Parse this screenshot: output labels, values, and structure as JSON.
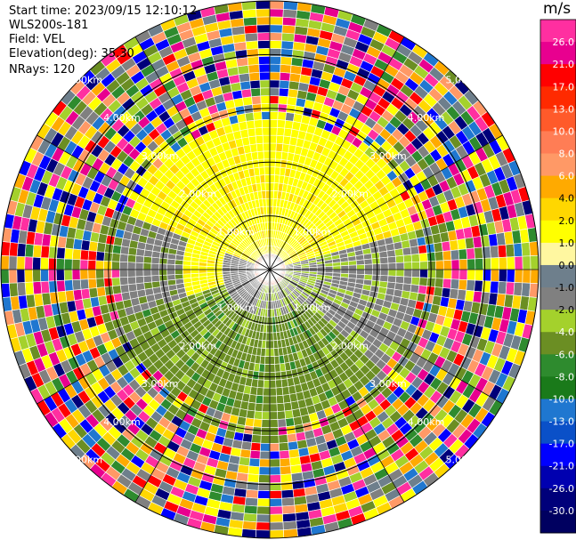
{
  "header": {
    "start_time": "Start time: 2023/09/15 12:10:12",
    "instrument": "WLS200s-181",
    "field": "Field: VEL",
    "elevation": "Elevation(deg): 35.30",
    "nrays": "NRays: 120"
  },
  "chart_data": {
    "type": "heatmap",
    "projection": "polar PPI",
    "field": "VEL",
    "units": "m/s",
    "range_rings_km": [
      1.0,
      2.0,
      3.0,
      4.0,
      5.0
    ],
    "ring_labels": [
      "1.00km",
      "2.00km",
      "3.00km",
      "4.00km",
      "5.00km"
    ],
    "max_range_km": 5.0,
    "nrays": 120,
    "colorbar": {
      "label": "m/s",
      "ticks": [
        "26.0",
        "21.0",
        "17.0",
        "13.0",
        "10.0",
        "8.0",
        "6.0",
        "4.0",
        "2.0",
        "1.0",
        "0.0",
        "-1.0",
        "-2.0",
        "-4.0",
        "-6.0",
        "-8.0",
        "-10.0",
        "-13.0",
        "-17.0",
        "-21.0",
        "-26.0",
        "-30.0"
      ],
      "colors": [
        "#ff2fa0",
        "#e8008f",
        "#ff0000",
        "#ff2a00",
        "#ff5a2a",
        "#ff7d55",
        "#ff9966",
        "#ffaa00",
        "#ffd700",
        "#ffff00",
        "#fff7a0",
        "#6e7f8c",
        "#808080",
        "#a4d12c",
        "#6b8e23",
        "#2e8b2e",
        "#1a7a1a",
        "#1f77d0",
        "#0a50c8",
        "#0000ff",
        "#0000b0",
        "#00007a",
        "#000060"
      ]
    }
  }
}
